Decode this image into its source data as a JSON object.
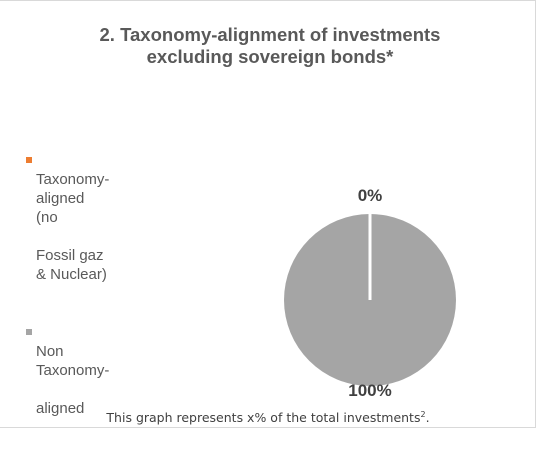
{
  "chart_data": {
    "type": "pie",
    "title_line1": "2. Taxonomy-alignment of investments",
    "title_line2": "excluding sovereign bonds*",
    "series": [
      {
        "name": "Taxonomy-aligned (no Fossil gaz & Nuclear)",
        "legend_line1": "Taxonomy-aligned (no",
        "legend_line2": "Fossil gaz & Nuclear)",
        "value": 0,
        "label": "0%",
        "color": "#ED7D31"
      },
      {
        "name": "Non Taxonomy-aligned",
        "legend_line1": "Non Taxonomy-",
        "legend_line2": "aligned",
        "value": 100,
        "label": "100%",
        "color": "#A5A5A5"
      }
    ],
    "legend_position": "left"
  },
  "footnote": {
    "text": "This graph represents x% of the total investments",
    "superscript": "2",
    "suffix": "."
  }
}
